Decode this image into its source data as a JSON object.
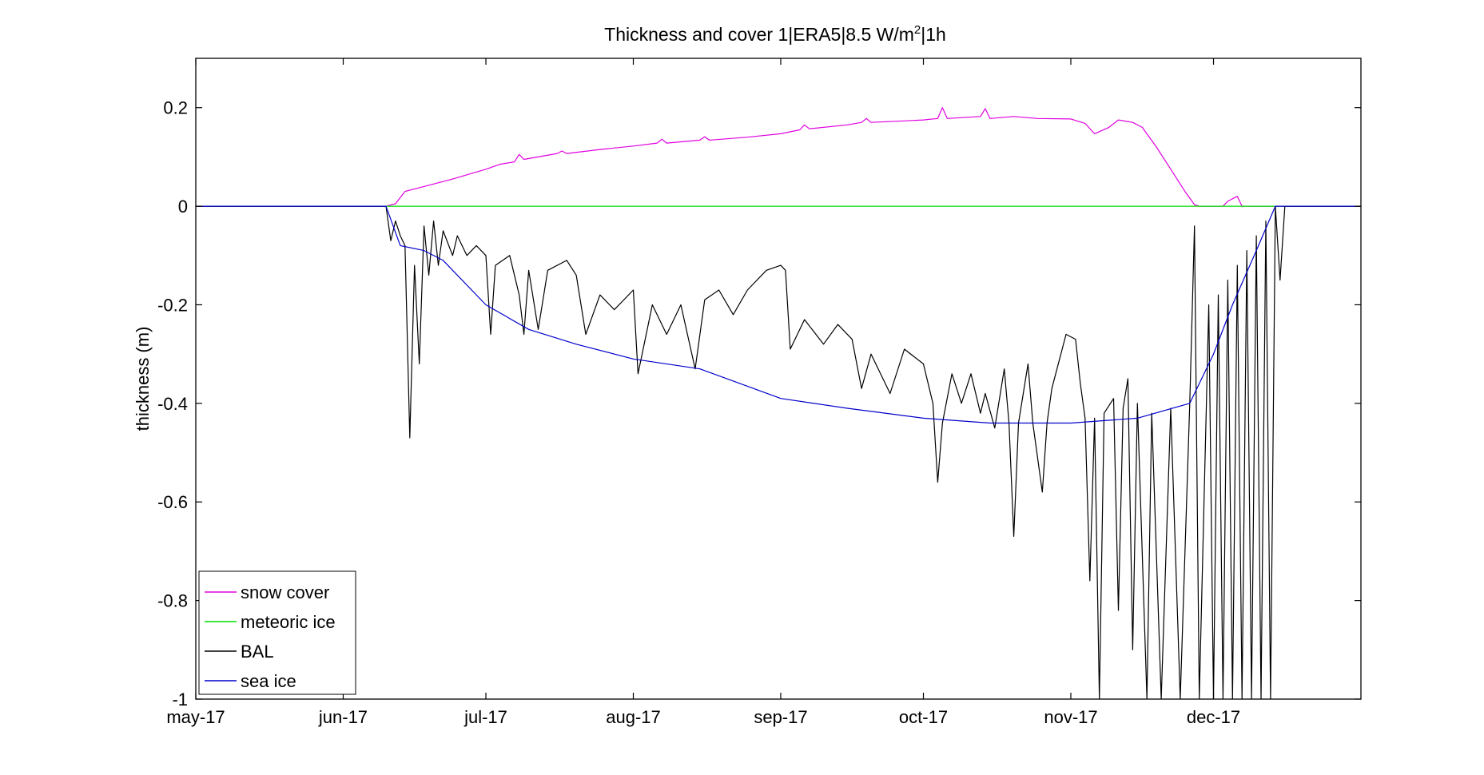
{
  "chart_data": {
    "type": "line",
    "title": "Thickness and cover 1|ERA5|8.5 W/m",
    "title_sup": "2",
    "title_suffix": "|1h",
    "xlabel": "",
    "ylabel": "thickness (m)",
    "xlim": [
      "2017-05-01",
      "2018-01-01"
    ],
    "ylim": [
      -1,
      0.3
    ],
    "grid": false,
    "legend_position": "bottom-left",
    "x_ticks": [
      {
        "date": "2017-05-01",
        "label": "may-17"
      },
      {
        "date": "2017-06-01",
        "label": "jun-17"
      },
      {
        "date": "2017-07-01",
        "label": "jul-17"
      },
      {
        "date": "2017-08-01",
        "label": "aug-17"
      },
      {
        "date": "2017-09-01",
        "label": "sep-17"
      },
      {
        "date": "2017-10-01",
        "label": "oct-17"
      },
      {
        "date": "2017-11-01",
        "label": "nov-17"
      },
      {
        "date": "2017-12-01",
        "label": "dec-17"
      }
    ],
    "y_ticks": [
      {
        "value": 0.2,
        "label": "0.2"
      },
      {
        "value": 0,
        "label": "0"
      },
      {
        "value": -0.2,
        "label": "-0.2"
      },
      {
        "value": -0.4,
        "label": "-0.4"
      },
      {
        "value": -0.6,
        "label": "-0.6"
      },
      {
        "value": -0.8,
        "label": "-0.8"
      },
      {
        "value": -1,
        "label": "-1"
      }
    ],
    "series": [
      {
        "name": "snow cover",
        "color": "#e000e0",
        "points": [
          [
            "2017-05-01",
            0
          ],
          [
            "2017-06-10",
            0
          ],
          [
            "2017-06-12",
            0.005
          ],
          [
            "2017-06-14",
            0.03
          ],
          [
            "2017-06-18",
            0.04
          ],
          [
            "2017-06-24",
            0.055
          ],
          [
            "2017-07-01",
            0.075
          ],
          [
            "2017-07-04",
            0.085
          ],
          [
            "2017-07-07",
            0.09
          ],
          [
            "2017-07-08",
            0.105
          ],
          [
            "2017-07-09",
            0.095
          ],
          [
            "2017-07-12",
            0.1
          ],
          [
            "2017-07-16",
            0.107
          ],
          [
            "2017-07-17",
            0.112
          ],
          [
            "2017-07-18",
            0.107
          ],
          [
            "2017-07-25",
            0.115
          ],
          [
            "2017-08-01",
            0.122
          ],
          [
            "2017-08-06",
            0.128
          ],
          [
            "2017-08-07",
            0.136
          ],
          [
            "2017-08-08",
            0.128
          ],
          [
            "2017-08-15",
            0.134
          ],
          [
            "2017-08-16",
            0.141
          ],
          [
            "2017-08-17",
            0.134
          ],
          [
            "2017-08-25",
            0.14
          ],
          [
            "2017-09-01",
            0.147
          ],
          [
            "2017-09-05",
            0.155
          ],
          [
            "2017-09-06",
            0.165
          ],
          [
            "2017-09-07",
            0.157
          ],
          [
            "2017-09-15",
            0.165
          ],
          [
            "2017-09-18",
            0.17
          ],
          [
            "2017-09-19",
            0.178
          ],
          [
            "2017-09-20",
            0.17
          ],
          [
            "2017-09-27",
            0.173
          ],
          [
            "2017-10-01",
            0.175
          ],
          [
            "2017-10-04",
            0.178
          ],
          [
            "2017-10-05",
            0.2
          ],
          [
            "2017-10-06",
            0.178
          ],
          [
            "2017-10-13",
            0.182
          ],
          [
            "2017-10-14",
            0.198
          ],
          [
            "2017-10-15",
            0.178
          ],
          [
            "2017-10-20",
            0.182
          ],
          [
            "2017-10-25",
            0.178
          ],
          [
            "2017-11-01",
            0.177
          ],
          [
            "2017-11-04",
            0.168
          ],
          [
            "2017-11-06",
            0.147
          ],
          [
            "2017-11-09",
            0.16
          ],
          [
            "2017-11-11",
            0.175
          ],
          [
            "2017-11-14",
            0.17
          ],
          [
            "2017-11-16",
            0.16
          ],
          [
            "2017-11-19",
            0.12
          ],
          [
            "2017-11-22",
            0.075
          ],
          [
            "2017-11-25",
            0.03
          ],
          [
            "2017-11-27",
            0.003
          ],
          [
            "2017-11-28",
            0
          ],
          [
            "2017-12-03",
            0
          ],
          [
            "2017-12-04",
            0.01
          ],
          [
            "2017-12-06",
            0.02
          ],
          [
            "2017-12-07",
            0
          ],
          [
            "2018-01-01",
            0
          ]
        ]
      },
      {
        "name": "meteoric ice",
        "color": "#00dd00",
        "points": [
          [
            "2017-05-01",
            0
          ],
          [
            "2018-01-01",
            0
          ]
        ]
      },
      {
        "name": "BAL",
        "color": "#000000",
        "points": [
          [
            "2017-05-01",
            0
          ],
          [
            "2017-06-10",
            0
          ],
          [
            "2017-06-11",
            -0.07
          ],
          [
            "2017-06-12",
            -0.03
          ],
          [
            "2017-06-13",
            -0.06
          ],
          [
            "2017-06-14",
            -0.08
          ],
          [
            "2017-06-15",
            -0.47
          ],
          [
            "2017-06-16",
            -0.12
          ],
          [
            "2017-06-17",
            -0.32
          ],
          [
            "2017-06-18",
            -0.04
          ],
          [
            "2017-06-19",
            -0.14
          ],
          [
            "2017-06-20",
            -0.03
          ],
          [
            "2017-06-21",
            -0.12
          ],
          [
            "2017-06-22",
            -0.05
          ],
          [
            "2017-06-24",
            -0.1
          ],
          [
            "2017-06-25",
            -0.06
          ],
          [
            "2017-06-27",
            -0.1
          ],
          [
            "2017-06-29",
            -0.08
          ],
          [
            "2017-07-01",
            -0.1
          ],
          [
            "2017-07-02",
            -0.26
          ],
          [
            "2017-07-03",
            -0.12
          ],
          [
            "2017-07-06",
            -0.1
          ],
          [
            "2017-07-08",
            -0.18
          ],
          [
            "2017-07-09",
            -0.26
          ],
          [
            "2017-07-10",
            -0.13
          ],
          [
            "2017-07-12",
            -0.25
          ],
          [
            "2017-07-14",
            -0.13
          ],
          [
            "2017-07-18",
            -0.11
          ],
          [
            "2017-07-20",
            -0.14
          ],
          [
            "2017-07-22",
            -0.26
          ],
          [
            "2017-07-25",
            -0.18
          ],
          [
            "2017-07-28",
            -0.21
          ],
          [
            "2017-08-01",
            -0.17
          ],
          [
            "2017-08-02",
            -0.34
          ],
          [
            "2017-08-05",
            -0.2
          ],
          [
            "2017-08-08",
            -0.26
          ],
          [
            "2017-08-11",
            -0.2
          ],
          [
            "2017-08-14",
            -0.33
          ],
          [
            "2017-08-16",
            -0.19
          ],
          [
            "2017-08-19",
            -0.17
          ],
          [
            "2017-08-22",
            -0.22
          ],
          [
            "2017-08-25",
            -0.17
          ],
          [
            "2017-08-29",
            -0.13
          ],
          [
            "2017-09-01",
            -0.12
          ],
          [
            "2017-09-02",
            -0.13
          ],
          [
            "2017-09-03",
            -0.29
          ],
          [
            "2017-09-06",
            -0.23
          ],
          [
            "2017-09-10",
            -0.28
          ],
          [
            "2017-09-13",
            -0.24
          ],
          [
            "2017-09-16",
            -0.27
          ],
          [
            "2017-09-18",
            -0.37
          ],
          [
            "2017-09-20",
            -0.3
          ],
          [
            "2017-09-24",
            -0.38
          ],
          [
            "2017-09-27",
            -0.29
          ],
          [
            "2017-10-01",
            -0.32
          ],
          [
            "2017-10-03",
            -0.4
          ],
          [
            "2017-10-04",
            -0.56
          ],
          [
            "2017-10-05",
            -0.44
          ],
          [
            "2017-10-07",
            -0.34
          ],
          [
            "2017-10-09",
            -0.4
          ],
          [
            "2017-10-11",
            -0.34
          ],
          [
            "2017-10-13",
            -0.42
          ],
          [
            "2017-10-14",
            -0.38
          ],
          [
            "2017-10-16",
            -0.45
          ],
          [
            "2017-10-18",
            -0.33
          ],
          [
            "2017-10-19",
            -0.44
          ],
          [
            "2017-10-20",
            -0.67
          ],
          [
            "2017-10-21",
            -0.44
          ],
          [
            "2017-10-23",
            -0.32
          ],
          [
            "2017-10-24",
            -0.44
          ],
          [
            "2017-10-26",
            -0.58
          ],
          [
            "2017-10-27",
            -0.44
          ],
          [
            "2017-10-28",
            -0.37
          ],
          [
            "2017-10-31",
            -0.26
          ],
          [
            "2017-11-02",
            -0.27
          ],
          [
            "2017-11-03",
            -0.36
          ],
          [
            "2017-11-04",
            -0.43
          ],
          [
            "2017-11-05",
            -0.76
          ],
          [
            "2017-11-06",
            -0.43
          ],
          [
            "2017-11-07",
            -1.0
          ],
          [
            "2017-11-08",
            -0.42
          ],
          [
            "2017-11-10",
            -0.39
          ],
          [
            "2017-11-11",
            -0.82
          ],
          [
            "2017-11-12",
            -0.41
          ],
          [
            "2017-11-13",
            -0.35
          ],
          [
            "2017-11-14",
            -0.9
          ],
          [
            "2017-11-15",
            -0.4
          ],
          [
            "2017-11-17",
            -1.0
          ],
          [
            "2017-11-18",
            -0.42
          ],
          [
            "2017-11-20",
            -1.0
          ],
          [
            "2017-11-22",
            -0.41
          ],
          [
            "2017-11-24",
            -1.0
          ],
          [
            "2017-11-26",
            -0.4
          ],
          [
            "2017-11-27",
            -0.04
          ],
          [
            "2017-11-28",
            -1.0
          ],
          [
            "2017-11-30",
            -0.2
          ],
          [
            "2017-12-01",
            -1.0
          ],
          [
            "2017-12-02",
            -0.18
          ],
          [
            "2017-12-03",
            -1.0
          ],
          [
            "2017-12-04",
            -0.15
          ],
          [
            "2017-12-05",
            -1.0
          ],
          [
            "2017-12-06",
            -0.12
          ],
          [
            "2017-12-07",
            -1.0
          ],
          [
            "2017-12-08",
            -0.09
          ],
          [
            "2017-12-09",
            -1.0
          ],
          [
            "2017-12-10",
            -0.06
          ],
          [
            "2017-12-11",
            -1.0
          ],
          [
            "2017-12-12",
            -0.03
          ],
          [
            "2017-12-13",
            -1.0
          ],
          [
            "2017-12-14",
            0
          ],
          [
            "2017-12-15",
            -0.15
          ],
          [
            "2017-12-16",
            0
          ],
          [
            "2018-01-01",
            0
          ]
        ]
      },
      {
        "name": "sea ice",
        "color": "#0000cc",
        "points": [
          [
            "2017-05-01",
            0
          ],
          [
            "2017-06-10",
            0
          ],
          [
            "2017-06-13",
            -0.08
          ],
          [
            "2017-06-18",
            -0.09
          ],
          [
            "2017-06-22",
            -0.11
          ],
          [
            "2017-07-01",
            -0.2
          ],
          [
            "2017-07-10",
            -0.25
          ],
          [
            "2017-07-20",
            -0.28
          ],
          [
            "2017-08-01",
            -0.31
          ],
          [
            "2017-08-15",
            -0.33
          ],
          [
            "2017-09-01",
            -0.39
          ],
          [
            "2017-09-15",
            -0.41
          ],
          [
            "2017-10-01",
            -0.43
          ],
          [
            "2017-10-15",
            -0.44
          ],
          [
            "2017-11-01",
            -0.44
          ],
          [
            "2017-11-15",
            -0.43
          ],
          [
            "2017-11-26",
            -0.4
          ],
          [
            "2017-12-01",
            -0.3
          ],
          [
            "2017-12-05",
            -0.2
          ],
          [
            "2017-12-10",
            -0.09
          ],
          [
            "2017-12-14",
            0
          ],
          [
            "2018-01-01",
            0
          ]
        ]
      }
    ]
  }
}
